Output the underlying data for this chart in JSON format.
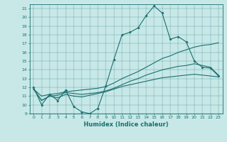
{
  "xlabel": "Humidex (Indice chaleur)",
  "bg_color": "#c8e8e8",
  "line_color": "#1a7070",
  "ylim": [
    9,
    21.5
  ],
  "xlim": [
    -0.5,
    23.5
  ],
  "yticks": [
    9,
    10,
    11,
    12,
    13,
    14,
    15,
    16,
    17,
    18,
    19,
    20,
    21
  ],
  "xticks": [
    0,
    1,
    2,
    3,
    4,
    5,
    6,
    7,
    8,
    9,
    10,
    11,
    12,
    13,
    14,
    15,
    16,
    17,
    18,
    19,
    20,
    21,
    22,
    23
  ],
  "x": [
    0,
    1,
    2,
    3,
    4,
    5,
    6,
    7,
    8,
    9,
    10,
    11,
    12,
    13,
    14,
    15,
    16,
    17,
    18,
    19,
    20,
    21,
    22,
    23
  ],
  "y_main": [
    12,
    10,
    11.2,
    10.5,
    11.7,
    9.8,
    9.2,
    9.0,
    9.6,
    12.2,
    15.2,
    18.0,
    18.3,
    18.8,
    20.2,
    21.3,
    20.5,
    17.5,
    17.8,
    17.2,
    15.0,
    14.3,
    14.2,
    13.3
  ],
  "y_line2": [
    11.8,
    11.0,
    11.2,
    11.3,
    11.5,
    11.6,
    11.7,
    11.8,
    11.9,
    12.1,
    12.5,
    13.0,
    13.4,
    13.8,
    14.3,
    14.8,
    15.3,
    15.6,
    16.0,
    16.3,
    16.6,
    16.8,
    16.9,
    17.1
  ],
  "y_line3": [
    11.8,
    10.5,
    11.0,
    11.1,
    11.4,
    11.3,
    11.2,
    11.3,
    11.4,
    11.6,
    11.9,
    12.3,
    12.7,
    13.0,
    13.4,
    13.7,
    14.0,
    14.2,
    14.4,
    14.5,
    14.7,
    14.5,
    14.3,
    13.4
  ],
  "y_line4": [
    11.8,
    10.5,
    11.0,
    10.8,
    11.2,
    11.0,
    10.9,
    11.1,
    11.3,
    11.5,
    11.8,
    12.1,
    12.3,
    12.5,
    12.7,
    12.9,
    13.1,
    13.2,
    13.3,
    13.4,
    13.5,
    13.4,
    13.3,
    13.2
  ]
}
